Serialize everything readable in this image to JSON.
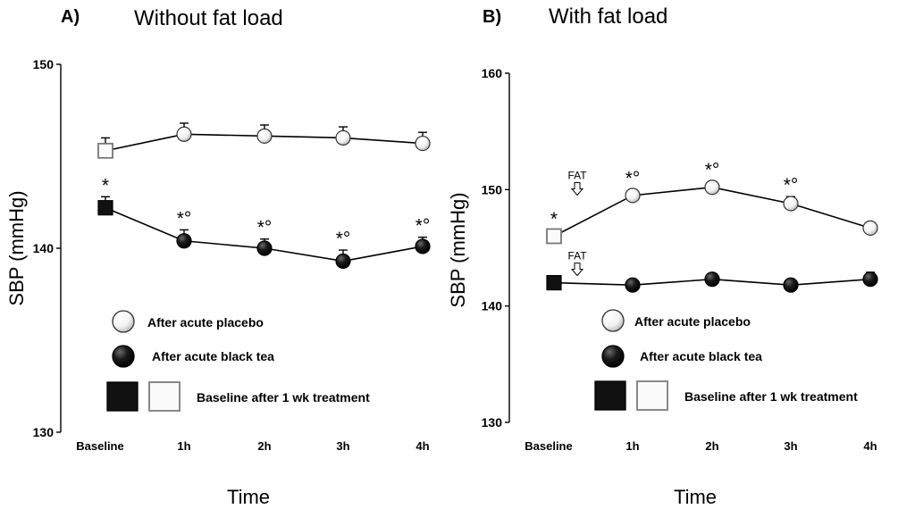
{
  "chart_data": [
    {
      "type": "line",
      "panel_label": "A)",
      "title": "Without fat load",
      "xlabel": "Time",
      "ylabel": "SBP (mmHg)",
      "ylim": [
        130,
        150
      ],
      "yticks": [
        "130",
        "140",
        "150"
      ],
      "categories": [
        "Baseline",
        "1h",
        "2h",
        "3h",
        "4h"
      ],
      "grid": false,
      "series": [
        {
          "name": "After acute placebo",
          "marker": "open-circle",
          "baseline_marker": "open-square",
          "values": [
            145.3,
            146.2,
            146.1,
            146.0,
            145.7
          ],
          "error": [
            0.7,
            0.6,
            0.6,
            0.6,
            0.6
          ],
          "annotations": [
            "",
            "",
            "",
            "",
            ""
          ]
        },
        {
          "name": "After acute black tea",
          "marker": "filled-circle",
          "baseline_marker": "filled-square",
          "values": [
            142.2,
            140.4,
            140.0,
            139.3,
            140.1
          ],
          "error": [
            0.6,
            0.6,
            0.5,
            0.6,
            0.5
          ],
          "annotations": [
            "*",
            "*°",
            "*°",
            "*°",
            "*°"
          ]
        }
      ],
      "legend": {
        "placebo": "After acute placebo",
        "tea": "After acute black tea",
        "baseline": "Baseline after 1 wk treatment"
      }
    },
    {
      "type": "line",
      "panel_label": "B)",
      "title": "With fat load",
      "xlabel": "Time",
      "ylabel": "SBP (mmHg)",
      "ylim": [
        130,
        160
      ],
      "yticks": [
        "130",
        "140",
        "150",
        "160"
      ],
      "categories": [
        "Baseline",
        "1h",
        "2h",
        "3h",
        "4h"
      ],
      "grid": false,
      "fat_marker": "FAT",
      "series": [
        {
          "name": "After acute placebo",
          "marker": "open-circle",
          "baseline_marker": "open-square",
          "values": [
            146.0,
            149.5,
            150.2,
            148.8,
            146.7
          ],
          "error": [
            0.5,
            0.5,
            0.5,
            0.6,
            0.4
          ],
          "annotations": [
            "*",
            "*°",
            "*°",
            "*°",
            ""
          ]
        },
        {
          "name": "After acute black tea",
          "marker": "filled-circle",
          "baseline_marker": "filled-square",
          "values": [
            142.0,
            141.8,
            142.3,
            141.8,
            142.3
          ],
          "error": [
            0.4,
            0.4,
            0.5,
            0.5,
            0.6
          ],
          "annotations": [
            "",
            "",
            "",
            "",
            ""
          ]
        }
      ],
      "legend": {
        "placebo": "After acute placebo",
        "tea": "After acute black tea",
        "baseline": "Baseline after 1 wk treatment"
      }
    }
  ]
}
